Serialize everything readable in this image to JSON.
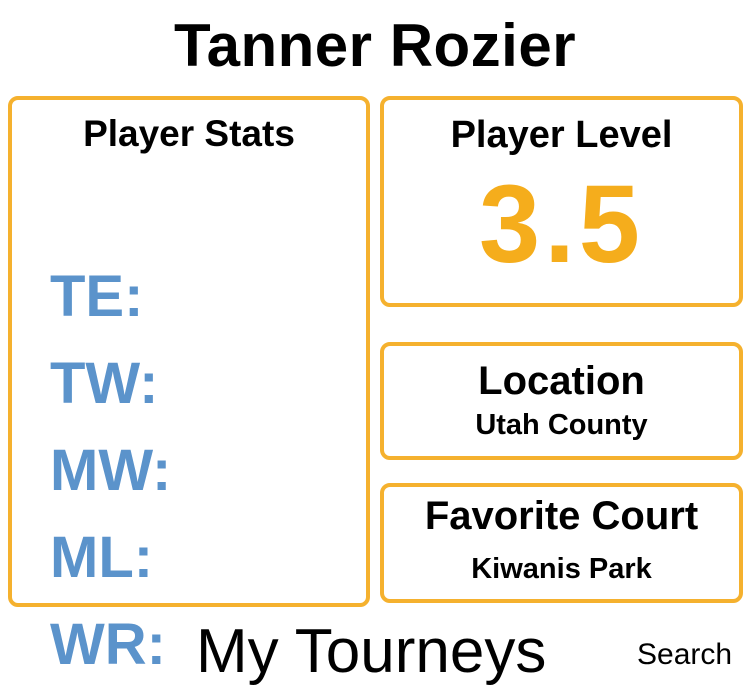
{
  "profile": {
    "name": "Tanner Rozier"
  },
  "stats": {
    "title": "Player Stats",
    "items": [
      {
        "label": "TE:"
      },
      {
        "label": "TW:"
      },
      {
        "label": "MW:"
      },
      {
        "label": "ML:"
      },
      {
        "label": "WR:"
      }
    ]
  },
  "level": {
    "title": "Player Level",
    "value": "3.5"
  },
  "location": {
    "title": "Location",
    "value": "Utah County"
  },
  "court": {
    "title": "Favorite Court",
    "value": "Kiwanis Park"
  },
  "nav": {
    "tourneys_label": "My Tourneys",
    "search_label": "Search"
  },
  "colors": {
    "accent_border": "#f5b12e",
    "level_value": "#f5ad1c",
    "stat_label": "#5b93cb"
  }
}
